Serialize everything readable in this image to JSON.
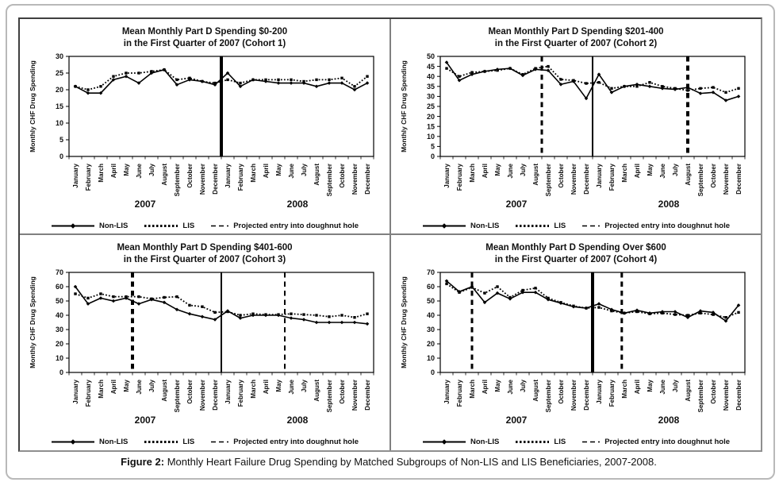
{
  "figure": {
    "caption_label": "Figure 2:",
    "caption_text": "Monthly Heart Failure Drug Spending by Matched Subgroups of Non-LIS and LIS Beneficiaries, 2007-2008."
  },
  "axis": {
    "y_label": "Monthly CHF Drug Spending",
    "months": [
      "January",
      "February",
      "March",
      "April",
      "May",
      "June",
      "July",
      "August",
      "September",
      "October",
      "November",
      "December"
    ],
    "years": [
      "2007",
      "2008"
    ]
  },
  "legend": {
    "nonlis": "Non-LIS",
    "lis": "LIS",
    "projected": "Projected entry into doughnut hole"
  },
  "colors": {
    "line": "#000000",
    "text": "#111111",
    "divider": "#808080",
    "outer_border": "#b9b9b9",
    "box_border_dark": "#3f3f3f"
  },
  "chart_data": [
    {
      "id": "cohort1",
      "type": "line",
      "title_line1": "Mean Monthly Part D Spending $0-200",
      "title_line2": "in the First Quarter of 2007 (Cohort 1)",
      "ylabel": "Monthly CHF Drug Spending",
      "xlabel_years": [
        "2007",
        "2008"
      ],
      "ylim": [
        0,
        30
      ],
      "ytick_step": 5,
      "grid": false,
      "legend_position": "bottom",
      "series": [
        {
          "name": "Non-LIS",
          "style": "solid",
          "values": [
            21,
            19,
            19,
            23,
            24,
            22,
            25,
            26,
            21.5,
            23,
            22.5,
            21.5,
            25,
            21,
            23,
            22.5,
            22,
            22,
            22,
            21,
            22,
            22,
            20,
            22
          ]
        },
        {
          "name": "LIS",
          "style": "dotted",
          "values": [
            21,
            20,
            21,
            24,
            25,
            25,
            25.5,
            26,
            23,
            23.5,
            22.5,
            22,
            23,
            22,
            23,
            23,
            23,
            23,
            22.5,
            23,
            23,
            23.5,
            21,
            24
          ]
        }
      ],
      "vlines": [
        {
          "x": 11.5,
          "style": "solid",
          "width": 4,
          "label": "Year divider"
        }
      ]
    },
    {
      "id": "cohort2",
      "type": "line",
      "title_line1": "Mean Monthly Part D Spending $201-400",
      "title_line2": "in the First Quarter of 2007 (Cohort 2)",
      "ylabel": "Monthly CHF Drug Spending",
      "xlabel_years": [
        "2007",
        "2008"
      ],
      "ylim": [
        0,
        50
      ],
      "ytick_step": 5,
      "grid": false,
      "legend_position": "bottom",
      "series": [
        {
          "name": "Non-LIS",
          "style": "solid",
          "values": [
            47,
            38,
            41,
            42.5,
            43.5,
            44,
            40.5,
            43.5,
            43,
            36,
            37.5,
            29,
            41,
            32,
            35,
            36,
            35,
            34,
            33.5,
            34.5,
            31.5,
            32,
            28,
            30
          ]
        },
        {
          "name": "LIS",
          "style": "dotted",
          "values": [
            44,
            40,
            42,
            42.5,
            43,
            44,
            41,
            44,
            45,
            38.5,
            38,
            36.5,
            37,
            34,
            35,
            35,
            37,
            35,
            34,
            33,
            34,
            34.5,
            32,
            34
          ]
        }
      ],
      "vlines": [
        {
          "x": 7.5,
          "style": "dashed",
          "width": 3,
          "label": "Projected entry into doughnut hole 2007 (September)"
        },
        {
          "x": 11.5,
          "style": "solid",
          "width": 2,
          "label": "Year divider"
        },
        {
          "x": 19,
          "style": "dashed",
          "width": 4,
          "label": "Projected entry into doughnut hole 2008 (August)"
        }
      ]
    },
    {
      "id": "cohort3",
      "type": "line",
      "title_line1": "Mean Monthly Part D Spending $401-600",
      "title_line2": "in the First Quarter of 2007 (Cohort 3)",
      "ylabel": "Monthly CHF Drug Spending",
      "xlabel_years": [
        "2007",
        "2008"
      ],
      "ylim": [
        0,
        70
      ],
      "ytick_step": 10,
      "grid": false,
      "legend_position": "bottom",
      "series": [
        {
          "name": "Non-LIS",
          "style": "solid",
          "values": [
            60,
            48,
            52,
            50,
            52,
            48,
            51,
            49,
            44,
            41,
            39,
            37,
            43,
            38,
            40,
            40,
            40,
            38,
            37,
            35,
            35,
            35,
            35,
            34
          ]
        },
        {
          "name": "LIS",
          "style": "dotted",
          "values": [
            55,
            52,
            55,
            53,
            53,
            53,
            51.5,
            52.5,
            53,
            47,
            46,
            42,
            42.5,
            40,
            41,
            40.5,
            40.5,
            41,
            40.5,
            40,
            39,
            40,
            38.5,
            41
          ]
        }
      ],
      "vlines": [
        {
          "x": 4.5,
          "style": "dashed",
          "width": 4,
          "label": "Projected entry into doughnut hole 2007 (May/June)"
        },
        {
          "x": 11.5,
          "style": "solid",
          "width": 2,
          "label": "Year divider"
        },
        {
          "x": 16.5,
          "style": "dashed",
          "width": 2,
          "label": "Projected entry into doughnut hole 2008 (May/June)"
        }
      ]
    },
    {
      "id": "cohort4",
      "type": "line",
      "title_line1": "Mean Monthly Part D Spending Over $600",
      "title_line2": "in the First Quarter of 2007 (Cohort 4)",
      "ylabel": "Monthly CHF Drug Spending",
      "xlabel_years": [
        "2007",
        "2008"
      ],
      "ylim": [
        0,
        70
      ],
      "ytick_step": 10,
      "grid": false,
      "legend_position": "bottom",
      "series": [
        {
          "name": "Non-LIS",
          "style": "solid",
          "values": [
            64,
            56.5,
            60,
            49,
            55.5,
            51.5,
            56,
            56,
            51,
            48.5,
            46,
            45,
            48,
            44,
            41.5,
            43.5,
            41.5,
            42.5,
            42.5,
            38.5,
            43,
            42,
            36,
            47
          ]
        },
        {
          "name": "LIS",
          "style": "dotted",
          "values": [
            62,
            56,
            59.5,
            55.5,
            60,
            52.5,
            57.5,
            59,
            52,
            49,
            46.5,
            45,
            45.5,
            43,
            41.5,
            42.5,
            41,
            41.5,
            40.5,
            40,
            41.5,
            40.5,
            38.5,
            42
          ]
        }
      ],
      "vlines": [
        {
          "x": 2,
          "style": "dashed",
          "width": 3,
          "label": "Projected entry into doughnut hole 2007 (March)"
        },
        {
          "x": 11.5,
          "style": "solid",
          "width": 4,
          "label": "Year divider"
        },
        {
          "x": 13.8,
          "style": "dashed",
          "width": 3,
          "label": "Projected entry into doughnut hole 2008 (March)"
        }
      ]
    }
  ]
}
